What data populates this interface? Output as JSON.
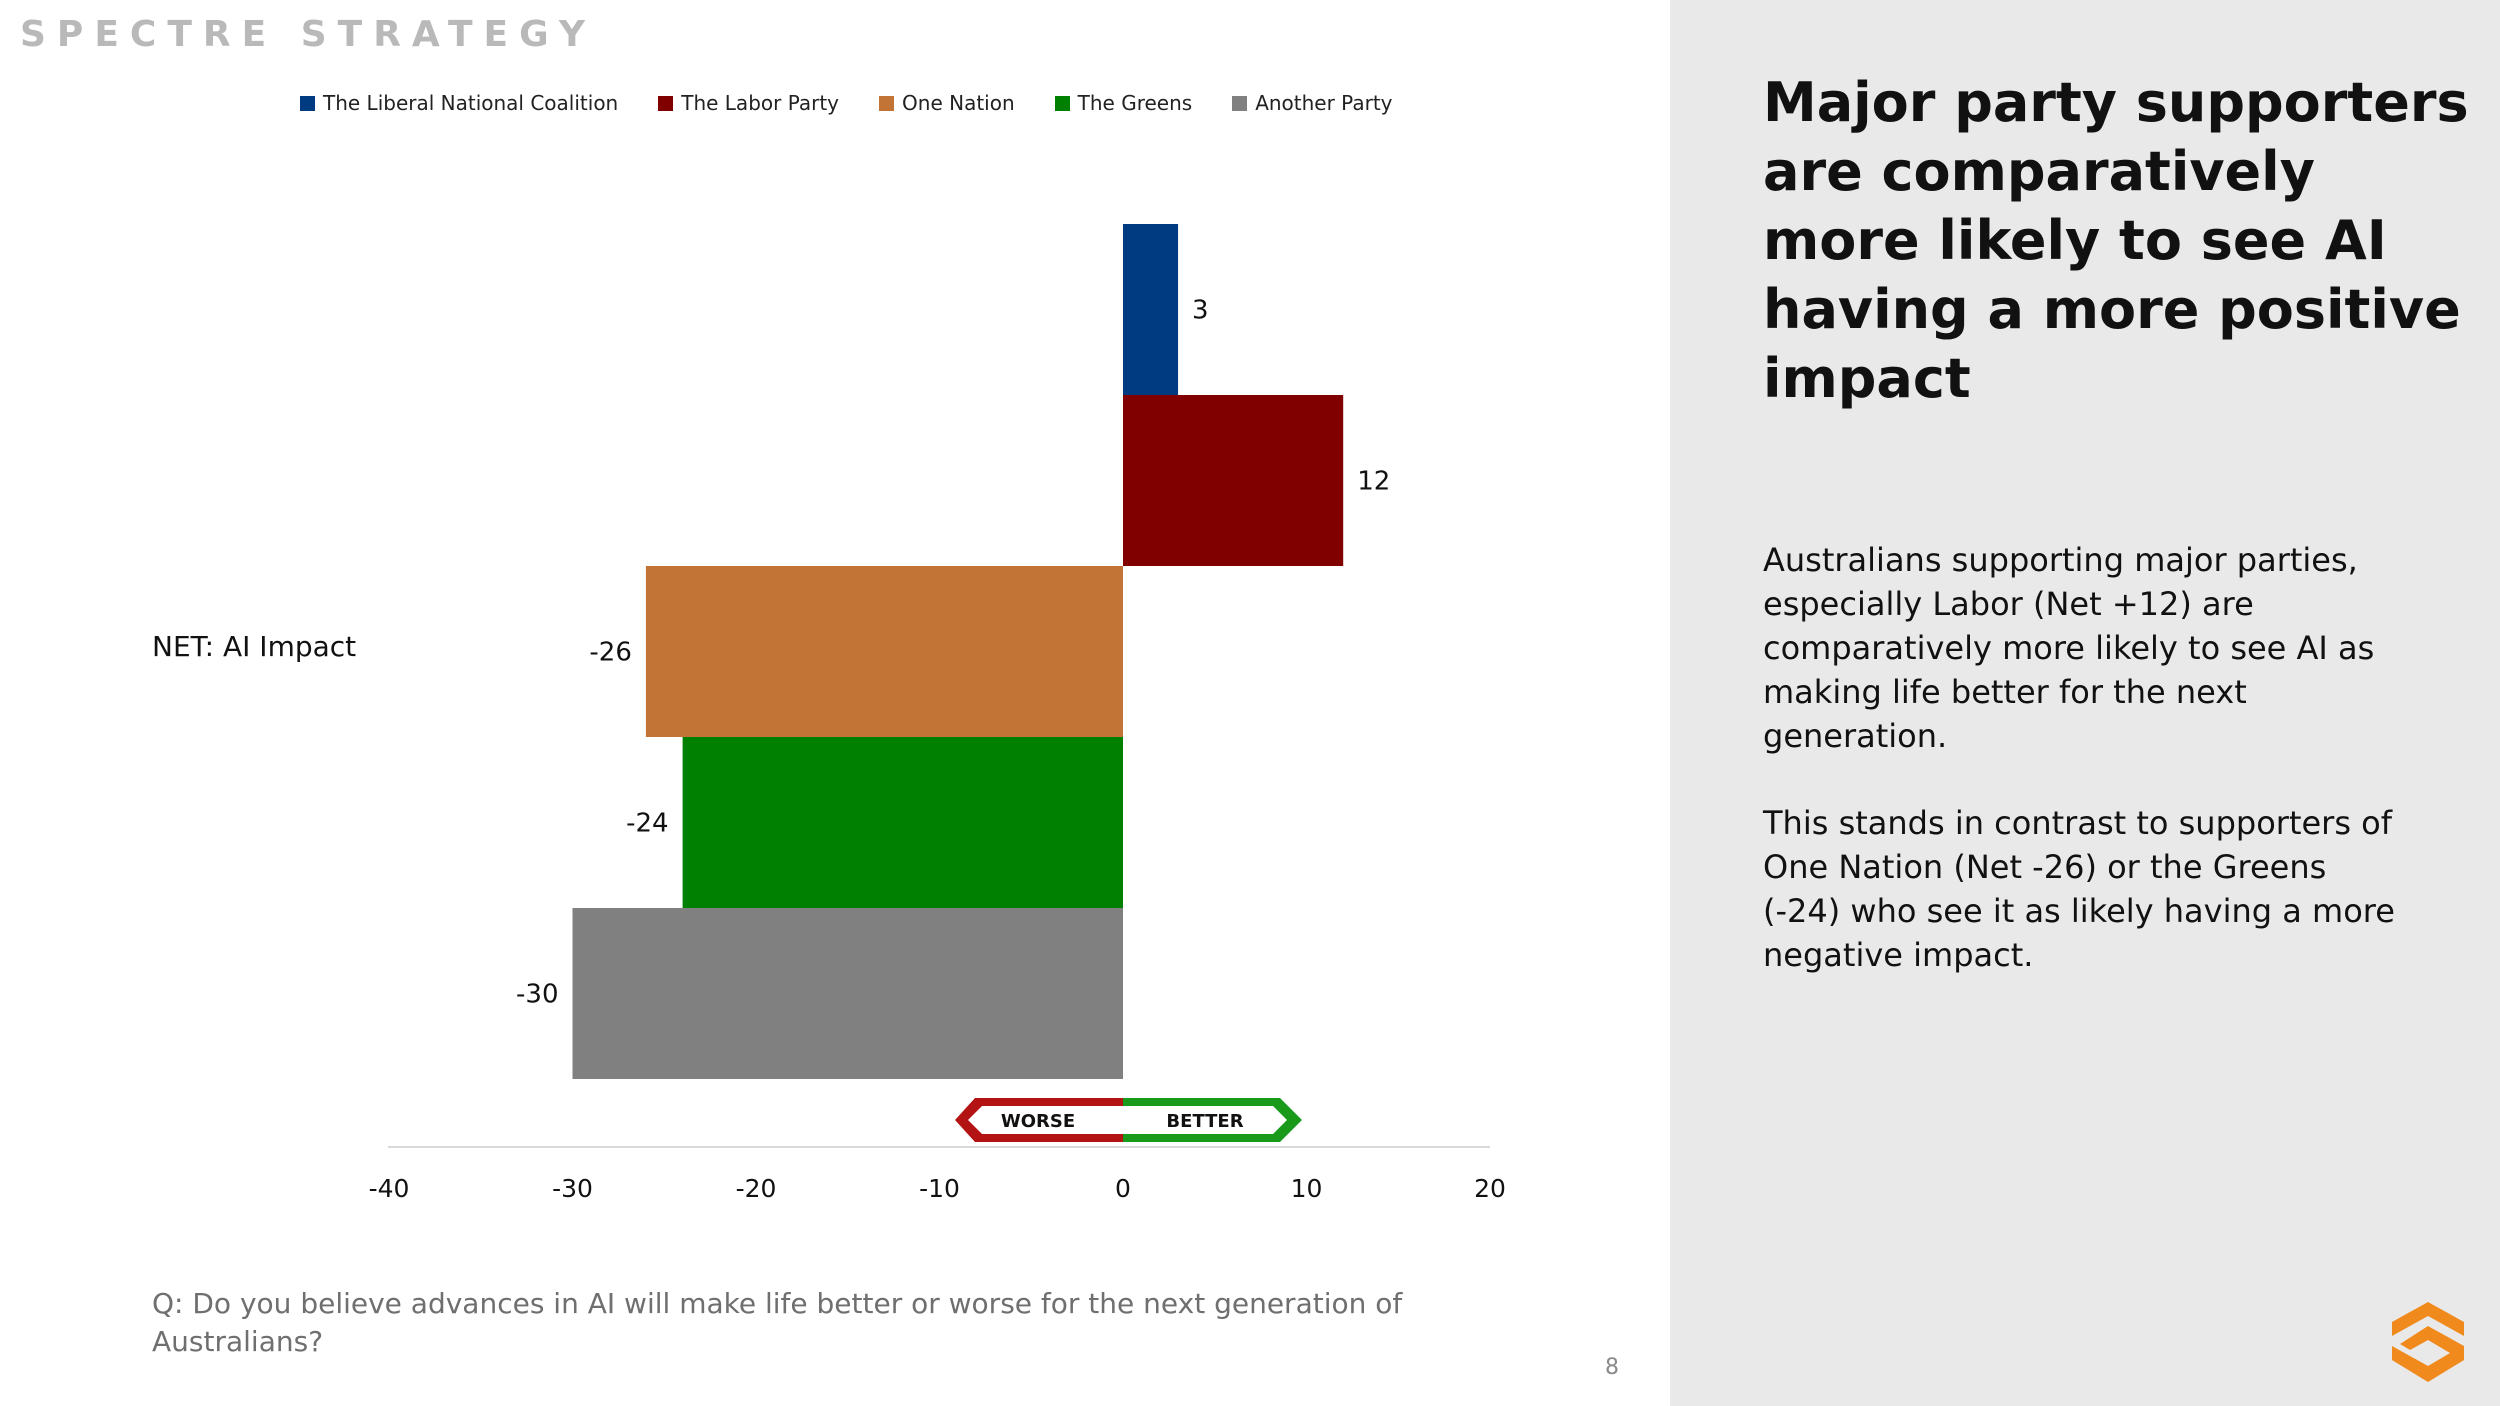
{
  "brand": "SPECTRE STRATEGY",
  "legend": [
    {
      "label": "The Liberal National Coalition",
      "color": "#003a80"
    },
    {
      "label": "The Labor Party",
      "color": "#800000"
    },
    {
      "label": "One Nation",
      "color": "#c27436"
    },
    {
      "label": "The Greens",
      "color": "#008000"
    },
    {
      "label": "Another Party",
      "color": "#808080"
    }
  ],
  "chart_data": {
    "type": "bar",
    "orientation": "horizontal",
    "categories": [
      "NET: AI Impact"
    ],
    "series": [
      {
        "name": "The Liberal National Coalition",
        "values": [
          3
        ],
        "color": "#003a80"
      },
      {
        "name": "The Labor Party",
        "values": [
          12
        ],
        "color": "#800000"
      },
      {
        "name": "One Nation",
        "values": [
          -26
        ],
        "color": "#c27436"
      },
      {
        "name": "The Greens",
        "values": [
          -24
        ],
        "color": "#008000"
      },
      {
        "name": "Another Party",
        "values": [
          -30
        ],
        "color": "#808080"
      }
    ],
    "xlim": [
      -40,
      20
    ],
    "x_ticks": [
      "-40",
      "-30",
      "-20",
      "-10",
      "0",
      "10",
      "20"
    ],
    "legend_position": "top",
    "grid": false,
    "annotation": {
      "worse": "WORSE",
      "better": "BETTER"
    }
  },
  "question": "Q: Do you believe advances in AI will make life better or worse for the next generation of Australians?",
  "page_number": "8",
  "headline": "Major party supporters are comparatively more likely to see AI having a more positive impact",
  "body": [
    "Australians supporting major parties, especially Labor (Net +12) are comparatively more likely to see AI as making life better for the next generation.",
    "This stands in contrast to supporters of One Nation (Net -26) or the Greens (-24) who see it as likely having a more negative impact."
  ],
  "colors": {
    "panel": "#e9e9e9",
    "logo": "#f08a1c",
    "worse": "#b31313",
    "better": "#1a9a1a"
  }
}
